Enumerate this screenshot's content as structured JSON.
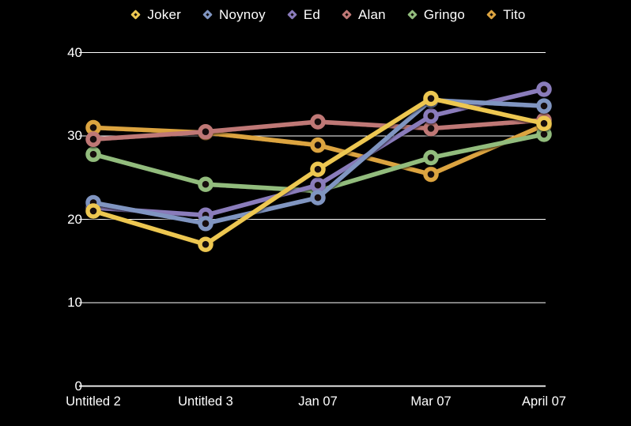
{
  "app": {
    "background": "#000000",
    "text_color": "#FFFFFF",
    "grid_color": "#FFFFFF"
  },
  "chart_data": {
    "type": "line",
    "title": "",
    "categories": [
      "Untitled 2",
      "Untitled 3",
      "Jan 07",
      "Mar 07",
      "April 07"
    ],
    "series": [
      {
        "name": "Joker",
        "color": "#EDC751",
        "values": [
          21,
          17,
          26,
          34.5,
          31.5
        ]
      },
      {
        "name": "Noynoy",
        "color": "#8095C1",
        "values": [
          22,
          19.5,
          22.6,
          34.3,
          33.6
        ]
      },
      {
        "name": "Ed",
        "color": "#8A7BBB",
        "values": [
          21.4,
          20.5,
          24.1,
          32.4,
          35.6
        ]
      },
      {
        "name": "Alan",
        "color": "#BF7876",
        "values": [
          29.6,
          30.5,
          31.7,
          30.9,
          31.9
        ]
      },
      {
        "name": "Gringo",
        "color": "#92BC7D",
        "values": [
          27.8,
          24.2,
          23.4,
          27.4,
          30.2
        ]
      },
      {
        "name": "Tito",
        "color": "#DCA440",
        "values": [
          31,
          30.4,
          28.9,
          25.4,
          31.3
        ]
      }
    ],
    "ylim": [
      0,
      40
    ],
    "y_ticks": [
      0,
      10,
      20,
      30,
      40
    ],
    "grid": true,
    "legend_position": "top",
    "marker_style": "ring",
    "draw_order": [
      "Tito",
      "Gringo",
      "Alan",
      "Ed",
      "Noynoy",
      "Joker"
    ]
  }
}
